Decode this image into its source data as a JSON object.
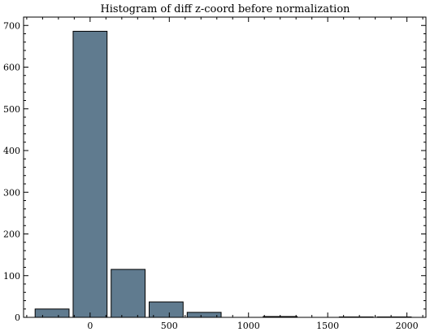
{
  "chart_data": {
    "type": "bar",
    "title": "Histogram of diff z-coord before normalization",
    "xlabel": "",
    "ylabel": "",
    "bin_edges": [
      -360,
      -120,
      120,
      360,
      600,
      840,
      1080,
      1320,
      1560,
      1800,
      2040
    ],
    "counts": [
      20,
      686,
      115,
      37,
      12,
      0,
      2,
      0,
      1,
      1
    ],
    "xlim": [
      -420,
      2120
    ],
    "ylim": [
      0,
      720
    ],
    "xticks": [
      0,
      500,
      1000,
      1500,
      2000
    ],
    "xtick_labels": [
      "0",
      "500",
      "1000",
      "1500",
      "2000"
    ],
    "yticks": [
      0,
      100,
      200,
      300,
      400,
      500,
      600,
      700
    ],
    "ytick_labels": [
      "0",
      "100",
      "200",
      "300",
      "400",
      "500",
      "600",
      "700"
    ],
    "grid": false,
    "bar_color": "#607b8f",
    "edge_color": "#000000"
  }
}
